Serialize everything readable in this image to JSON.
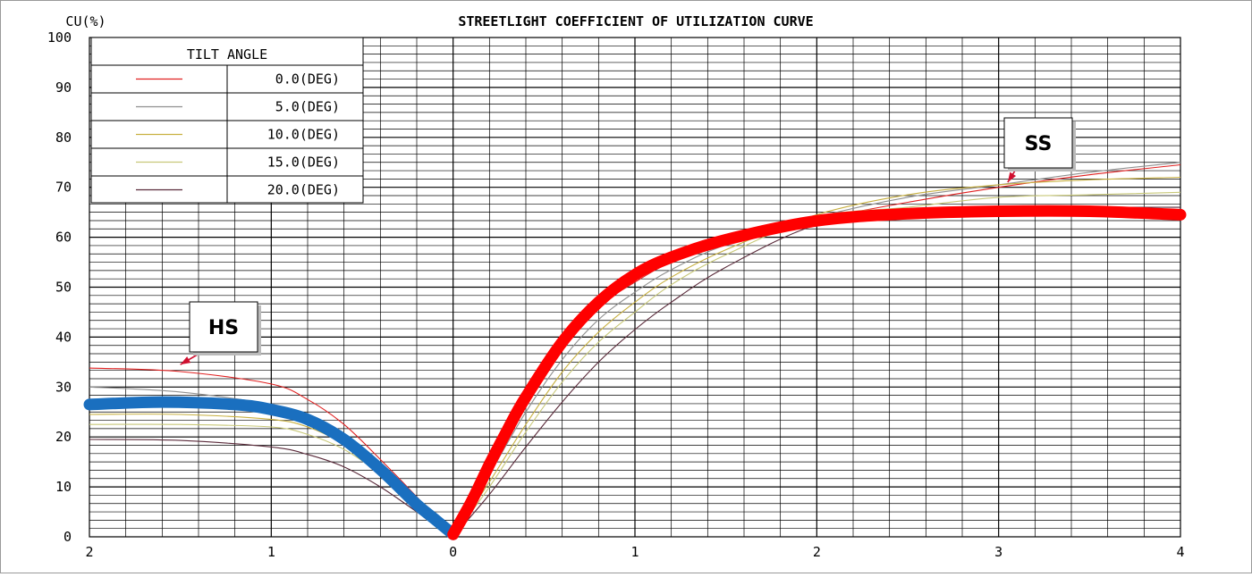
{
  "chart_data": {
    "type": "line",
    "title": "STREETLIGHT COEFFICIENT OF UTILIZATION CURVE",
    "ylabel": "CU(%)",
    "xlabel": "",
    "xlim": [
      -2,
      4
    ],
    "ylim": [
      0,
      100
    ],
    "x_ticks": [
      {
        "value": -2,
        "label": "2"
      },
      {
        "value": -1,
        "label": "1"
      },
      {
        "value": 0,
        "label": "0"
      },
      {
        "value": 1,
        "label": "1"
      },
      {
        "value": 2,
        "label": "2"
      },
      {
        "value": 3,
        "label": "3"
      },
      {
        "value": 4,
        "label": "4"
      }
    ],
    "y_ticks": [
      0,
      10,
      20,
      30,
      40,
      50,
      60,
      70,
      80,
      90,
      100
    ],
    "grid": true,
    "legend": {
      "title": "TILT ANGLE",
      "placement": "top-left"
    },
    "series": [
      {
        "name": "0.0(DEG)",
        "color": "#e02020",
        "x": [
          -2,
          -1.5,
          -1,
          -0.8,
          -0.6,
          -0.4,
          -0.2,
          0,
          0.2,
          0.4,
          0.6,
          0.8,
          1,
          1.2,
          1.5,
          2,
          2.5,
          3,
          3.5,
          4
        ],
        "y": [
          33.8,
          33.1,
          30.6,
          27.5,
          22.5,
          15.5,
          8,
          0,
          14,
          27,
          38,
          46,
          51,
          55,
          59,
          63.5,
          67,
          70,
          72.5,
          74.5
        ]
      },
      {
        "name": "5.0(DEG)",
        "color": "#909090",
        "x": [
          -2,
          -1.5,
          -1,
          -0.8,
          -0.6,
          -0.4,
          -0.2,
          0,
          0.2,
          0.4,
          0.6,
          0.8,
          1,
          1.2,
          1.5,
          2,
          2.5,
          3,
          3.5,
          4
        ],
        "y": [
          30,
          29,
          26.5,
          24,
          19.5,
          13.5,
          7,
          0,
          12.5,
          25,
          35.5,
          43.5,
          49,
          53.5,
          58.5,
          64,
          68,
          70.5,
          73,
          75
        ]
      },
      {
        "name": "10.0(DEG)",
        "color": "#c8b040",
        "x": [
          -2,
          -1.5,
          -1,
          -0.8,
          -0.6,
          -0.4,
          -0.2,
          0,
          0.2,
          0.4,
          0.6,
          0.8,
          1,
          1.2,
          1.5,
          2,
          2.5,
          3,
          3.5,
          4
        ],
        "y": [
          24.5,
          24.5,
          23.5,
          22,
          18.5,
          13,
          6.5,
          0,
          11,
          22.5,
          33,
          41,
          47,
          52,
          57.5,
          64.5,
          68.5,
          70.5,
          71.5,
          72
        ]
      },
      {
        "name": "15.0(DEG)",
        "color": "#c8c878",
        "x": [
          -2,
          -1.5,
          -1,
          -0.8,
          -0.6,
          -0.4,
          -0.2,
          0,
          0.2,
          0.4,
          0.6,
          0.8,
          1,
          1.2,
          1.5,
          2,
          2.5,
          3,
          3.5,
          4
        ],
        "y": [
          22.5,
          22.5,
          22,
          20.5,
          17.5,
          12.5,
          6,
          0,
          10,
          21,
          31,
          39,
          45,
          50.5,
          56.5,
          64,
          66,
          68,
          68.5,
          69
        ]
      },
      {
        "name": "20.0(DEG)",
        "color": "#5a2a3a",
        "x": [
          -2,
          -1.5,
          -1,
          -0.8,
          -0.6,
          -0.4,
          -0.2,
          0,
          0.2,
          0.4,
          0.6,
          0.8,
          1,
          1.2,
          1.5,
          2,
          2.5,
          3,
          3.5,
          4
        ],
        "y": [
          19.5,
          19.3,
          18,
          16.5,
          14,
          10,
          5,
          0,
          8.5,
          18,
          27,
          35,
          41.5,
          47,
          54,
          62.5,
          65,
          66,
          66,
          66
        ]
      }
    ],
    "highlight_series": [
      {
        "color": "#1a6fbf",
        "x": [
          -2,
          -1.6,
          -1.2,
          -1,
          -0.8,
          -0.6,
          -0.4,
          -0.2,
          -0.1,
          0
        ],
        "y": [
          26.5,
          27,
          26.5,
          25.5,
          23.5,
          19.5,
          13.5,
          6.5,
          3.5,
          0.5
        ]
      },
      {
        "color": "#ff0000",
        "x": [
          0,
          0.1,
          0.2,
          0.3,
          0.4,
          0.6,
          0.8,
          1,
          1.2,
          1.5,
          2,
          2.5,
          3,
          3.5,
          4
        ],
        "y": [
          0.5,
          7,
          14.5,
          21.5,
          28,
          39,
          47,
          52.5,
          56,
          59.5,
          63.3,
          64.7,
          65.2,
          65.2,
          64.5
        ]
      }
    ],
    "annotations": [
      {
        "label": "HS",
        "x": -1.5,
        "y": 34.5
      },
      {
        "label": "SS",
        "x": 3.05,
        "y": 71
      }
    ]
  }
}
